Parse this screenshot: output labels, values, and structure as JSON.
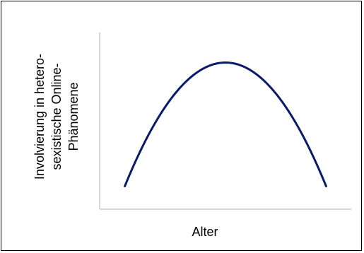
{
  "chart_data": {
    "type": "line",
    "title": "",
    "xlabel": "Alter",
    "ylabel": "Involvierung in hetero-\nsexistische Online-\nPhänomene",
    "grid": false,
    "legend": "none",
    "xlim": [
      0,
      1
    ],
    "ylim": [
      0,
      1
    ],
    "series": [
      {
        "color": "#0b1a6b",
        "shape": "inverted-u",
        "x": [
          0.1,
          0.2,
          0.3,
          0.4,
          0.5,
          0.6,
          0.7,
          0.8,
          0.9
        ],
        "y": [
          0.13,
          0.42,
          0.64,
          0.78,
          0.83,
          0.78,
          0.64,
          0.42,
          0.13
        ]
      }
    ]
  }
}
